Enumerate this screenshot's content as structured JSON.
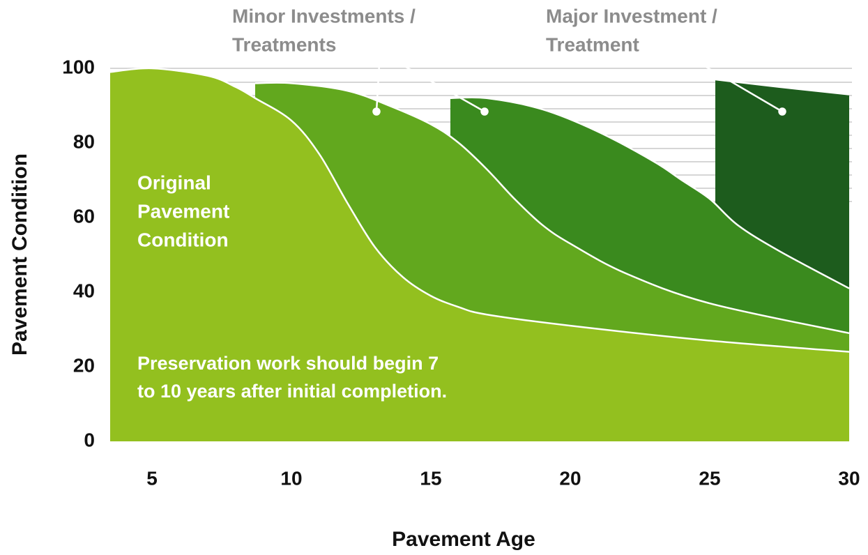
{
  "chart_data": {
    "type": "area",
    "xlabel": "Pavement Age",
    "ylabel": "Pavement Condition",
    "xlim": [
      3.5,
      30.1
    ],
    "ylim": [
      0,
      100
    ],
    "xticks": [
      5,
      10,
      15,
      20,
      25,
      30
    ],
    "yticks": [
      0,
      20,
      40,
      60,
      80,
      100
    ],
    "series": [
      {
        "color": "#93c01f",
        "x": [
          3.5,
          5,
          7,
          8,
          8.7,
          10,
          11,
          12,
          13,
          14,
          15,
          16,
          17,
          20,
          25,
          30
        ],
        "values": [
          99,
          100,
          98,
          95,
          92,
          86,
          77,
          64,
          52,
          44,
          39,
          36,
          34,
          31,
          27,
          24
        ]
      },
      {
        "color": "#62a81e",
        "x": [
          8.7,
          10,
          12,
          13.5,
          15,
          16,
          17,
          18,
          19,
          20,
          22,
          25,
          30
        ],
        "values": [
          96,
          96,
          94,
          90,
          85,
          80,
          73,
          65,
          58,
          53,
          45,
          37,
          29
        ]
      },
      {
        "color": "#3a8a1e",
        "x": [
          15.7,
          17,
          19,
          21,
          23,
          24,
          25,
          26,
          27.5,
          30
        ],
        "values": [
          92,
          92,
          89,
          83,
          75,
          70,
          65,
          58,
          51,
          41
        ]
      },
      {
        "color": "#1d5c1d",
        "x": [
          25.2,
          27.5,
          30
        ],
        "values": [
          97,
          95,
          93
        ]
      }
    ],
    "labels": [
      {
        "lines": [
          "Original",
          "Pavement",
          "Condition"
        ]
      },
      {
        "lines": [
          "Preservation work should begin 7",
          "to 10 years after initial completion."
        ]
      }
    ],
    "annotations": [
      {
        "lines": [
          "Minor Investments /",
          "Treatments"
        ]
      },
      {
        "lines": [
          "Major Investment /",
          "Treatment"
        ]
      }
    ]
  }
}
